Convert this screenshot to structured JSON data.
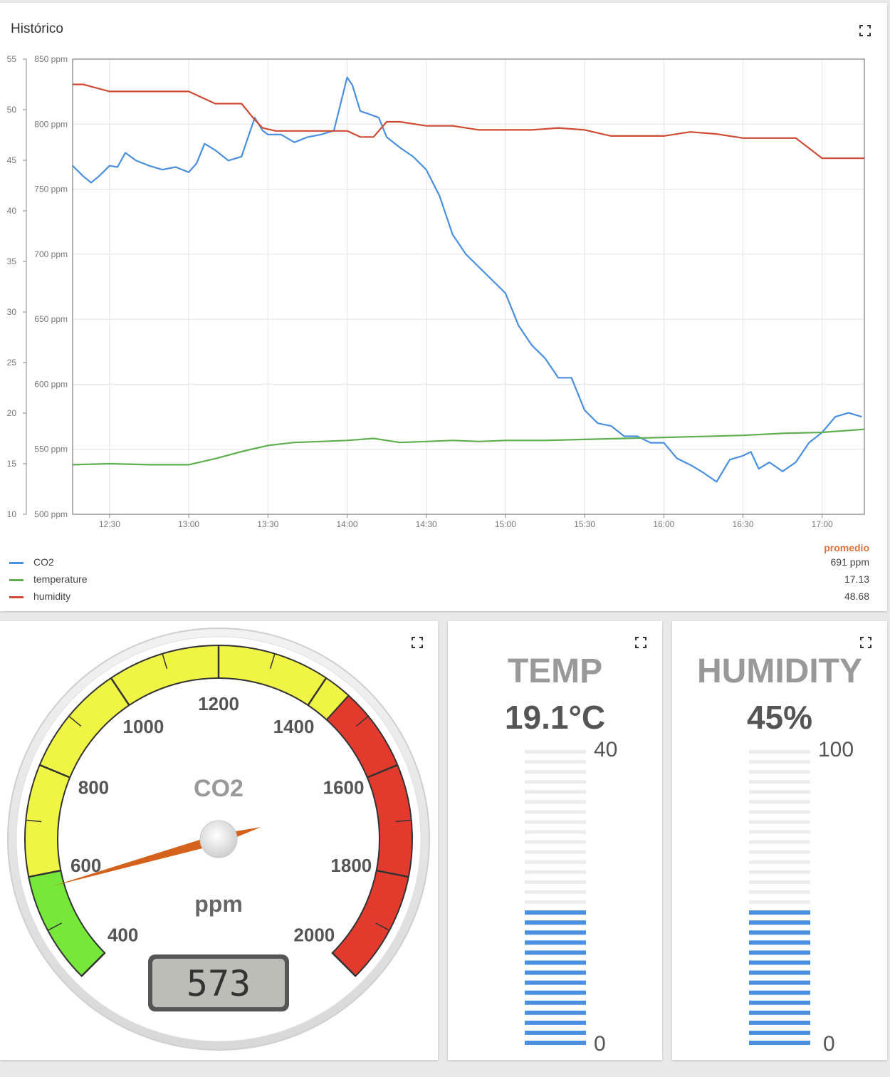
{
  "history": {
    "title": "Histórico",
    "legend_header": "promedio",
    "legend": [
      {
        "name": "CO2",
        "value": "691 ppm",
        "color": "#4a8fe0"
      },
      {
        "name": "temperature",
        "value": "17.13",
        "color": "#5fae4f"
      },
      {
        "name": "humidity",
        "value": "48.68",
        "color": "#cf4a34"
      }
    ]
  },
  "gauge": {
    "title": "CO2",
    "unit": "ppm",
    "value": 573,
    "display": "573",
    "min": 400,
    "max": 2000,
    "tick_labels": [
      "400",
      "600",
      "800",
      "1000",
      "1200",
      "1400",
      "1600",
      "1800",
      "2000"
    ],
    "bands": [
      {
        "from": 400,
        "to": 600,
        "color": "#76e83a"
      },
      {
        "from": 600,
        "to": 1450,
        "color": "#f0f545"
      },
      {
        "from": 1450,
        "to": 2000,
        "color": "#e23b2e"
      }
    ]
  },
  "temp": {
    "label": "TEMP",
    "value_text": "19.1°C",
    "value": 19.1,
    "max_label": "40",
    "min_label": "0",
    "max": 40,
    "min": 0
  },
  "humidity": {
    "label": "HUMIDITY",
    "value_text": "45%",
    "value": 45,
    "max_label": "100",
    "min_label": "0",
    "max": 100,
    "min": 0
  },
  "chart_data": {
    "type": "line",
    "title": "Histórico",
    "x_ticks": [
      "12:30",
      "13:00",
      "13:30",
      "14:00",
      "14:30",
      "15:00",
      "15:30",
      "16:00",
      "16:30",
      "17:00"
    ],
    "xlim": [
      "12:16",
      "17:16"
    ],
    "y_left_ticks": [
      "10",
      "15",
      "20",
      "25",
      "30",
      "35",
      "40",
      "45",
      "50",
      "55"
    ],
    "y_left_range": [
      10,
      55
    ],
    "y_right_ticks": [
      "500 ppm",
      "550 ppm",
      "600 ppm",
      "650 ppm",
      "700 ppm",
      "750 ppm",
      "800 ppm",
      "850 ppm"
    ],
    "y_right_range": [
      500,
      850
    ],
    "grid": true,
    "legend_position": "bottom",
    "series": [
      {
        "name": "CO2",
        "axis": "ppm",
        "color": "#4a8fe0",
        "x": [
          "12:16",
          "12:20",
          "12:23",
          "12:26",
          "12:30",
          "12:33",
          "12:36",
          "12:40",
          "12:45",
          "12:50",
          "12:55",
          "13:00",
          "13:03",
          "13:06",
          "13:10",
          "13:15",
          "13:20",
          "13:25",
          "13:28",
          "13:30",
          "13:35",
          "13:40",
          "13:45",
          "13:50",
          "13:55",
          "14:00",
          "14:02",
          "14:05",
          "14:08",
          "14:12",
          "14:15",
          "14:20",
          "14:25",
          "14:30",
          "14:35",
          "14:40",
          "14:45",
          "14:50",
          "14:55",
          "15:00",
          "15:05",
          "15:10",
          "15:15",
          "15:20",
          "15:25",
          "15:30",
          "15:35",
          "15:40",
          "15:45",
          "15:50",
          "15:55",
          "16:00",
          "16:05",
          "16:10",
          "16:15",
          "16:20",
          "16:25",
          "16:30",
          "16:33",
          "16:36",
          "16:40",
          "16:45",
          "16:50",
          "16:55",
          "17:00",
          "17:05",
          "17:10",
          "17:15"
        ],
        "y": [
          768,
          760,
          755,
          760,
          768,
          767,
          778,
          772,
          768,
          765,
          767,
          763,
          770,
          785,
          780,
          772,
          775,
          805,
          795,
          792,
          792,
          786,
          790,
          792,
          795,
          836,
          830,
          810,
          808,
          805,
          790,
          782,
          775,
          765,
          745,
          715,
          700,
          690,
          680,
          670,
          645,
          630,
          620,
          605,
          605,
          580,
          570,
          568,
          560,
          560,
          555,
          555,
          543,
          538,
          532,
          525,
          542,
          545,
          548,
          535,
          540,
          533,
          540,
          555,
          563,
          575,
          578,
          575
        ]
      },
      {
        "name": "temperature",
        "axis": "left",
        "color": "#5fae4f",
        "x": [
          "12:16",
          "12:30",
          "12:45",
          "13:00",
          "13:10",
          "13:20",
          "13:30",
          "13:40",
          "13:50",
          "14:00",
          "14:10",
          "14:20",
          "14:30",
          "14:40",
          "14:50",
          "15:00",
          "15:15",
          "15:30",
          "15:45",
          "16:00",
          "16:15",
          "16:30",
          "16:45",
          "17:00",
          "17:16"
        ],
        "y": [
          14.9,
          15.0,
          14.9,
          14.9,
          15.5,
          16.2,
          16.8,
          17.1,
          17.2,
          17.3,
          17.5,
          17.1,
          17.2,
          17.3,
          17.2,
          17.3,
          17.3,
          17.4,
          17.5,
          17.6,
          17.7,
          17.8,
          18.0,
          18.1,
          18.4
        ]
      },
      {
        "name": "humidity",
        "axis": "left",
        "color": "#cf4a34",
        "x": [
          "12:16",
          "12:20",
          "12:30",
          "12:40",
          "12:50",
          "13:00",
          "13:10",
          "13:20",
          "13:25",
          "13:28",
          "13:33",
          "13:40",
          "13:50",
          "14:00",
          "14:05",
          "14:10",
          "14:15",
          "14:20",
          "14:30",
          "14:40",
          "14:50",
          "15:00",
          "15:10",
          "15:20",
          "15:30",
          "15:40",
          "15:50",
          "16:00",
          "16:10",
          "16:20",
          "16:30",
          "16:40",
          "16:50",
          "17:00",
          "17:16"
        ],
        "y": [
          52.5,
          52.5,
          51.8,
          51.8,
          51.8,
          51.8,
          50.6,
          50.6,
          49.0,
          48.2,
          47.9,
          47.9,
          47.9,
          47.9,
          47.3,
          47.3,
          48.8,
          48.8,
          48.4,
          48.4,
          48.0,
          48.0,
          48.0,
          48.2,
          48.0,
          47.4,
          47.4,
          47.4,
          47.8,
          47.6,
          47.2,
          47.2,
          47.2,
          45.2,
          45.2
        ]
      }
    ]
  }
}
